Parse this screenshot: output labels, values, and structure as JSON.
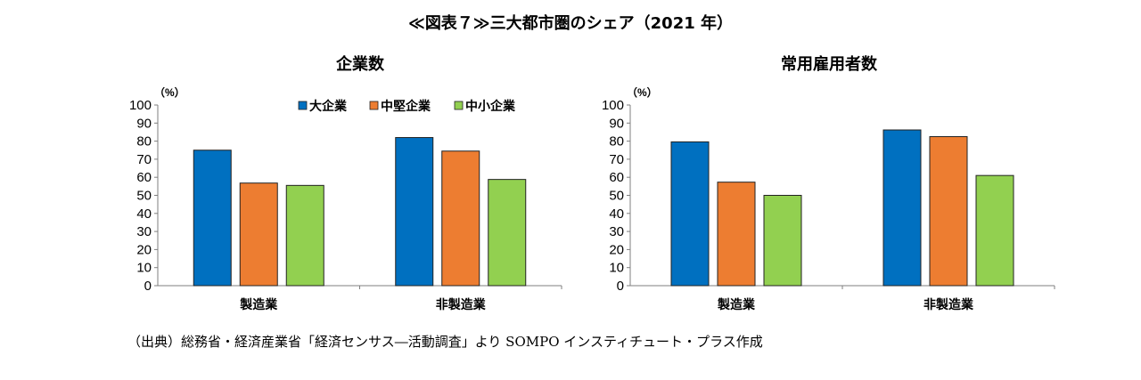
{
  "title": "≪図表７≫三大都市圏のシェア（2021 年）",
  "source": "（出典）総務省・経済産業省「経済センサス―活動調査」より SOMPO インスティチュート・プラス作成",
  "colors": {
    "大企業": "#0070c0",
    "中堅企業": "#ed7d31",
    "中小企業": "#92d050"
  },
  "chart_data": [
    {
      "type": "bar",
      "title": "企業数",
      "ylabel": "（%）",
      "ylim": [
        0,
        100
      ],
      "yticks": [
        0,
        10,
        20,
        30,
        40,
        50,
        60,
        70,
        80,
        90,
        100
      ],
      "categories": [
        "製造業",
        "非製造業"
      ],
      "legend": "top-right",
      "series": [
        {
          "name": "大企業",
          "values": [
            75.0,
            82.0
          ]
        },
        {
          "name": "中堅企業",
          "values": [
            56.8,
            74.5
          ]
        },
        {
          "name": "中小企業",
          "values": [
            55.5,
            58.8
          ]
        }
      ]
    },
    {
      "type": "bar",
      "title": "常用雇用者数",
      "ylabel": "（%）",
      "ylim": [
        0,
        100
      ],
      "yticks": [
        0,
        10,
        20,
        30,
        40,
        50,
        60,
        70,
        80,
        90,
        100
      ],
      "categories": [
        "製造業",
        "非製造業"
      ],
      "series": [
        {
          "name": "大企業",
          "values": [
            79.6,
            86.2
          ]
        },
        {
          "name": "中堅企業",
          "values": [
            57.3,
            82.5
          ]
        },
        {
          "name": "中小企業",
          "values": [
            50.0,
            61.0
          ]
        }
      ]
    }
  ]
}
